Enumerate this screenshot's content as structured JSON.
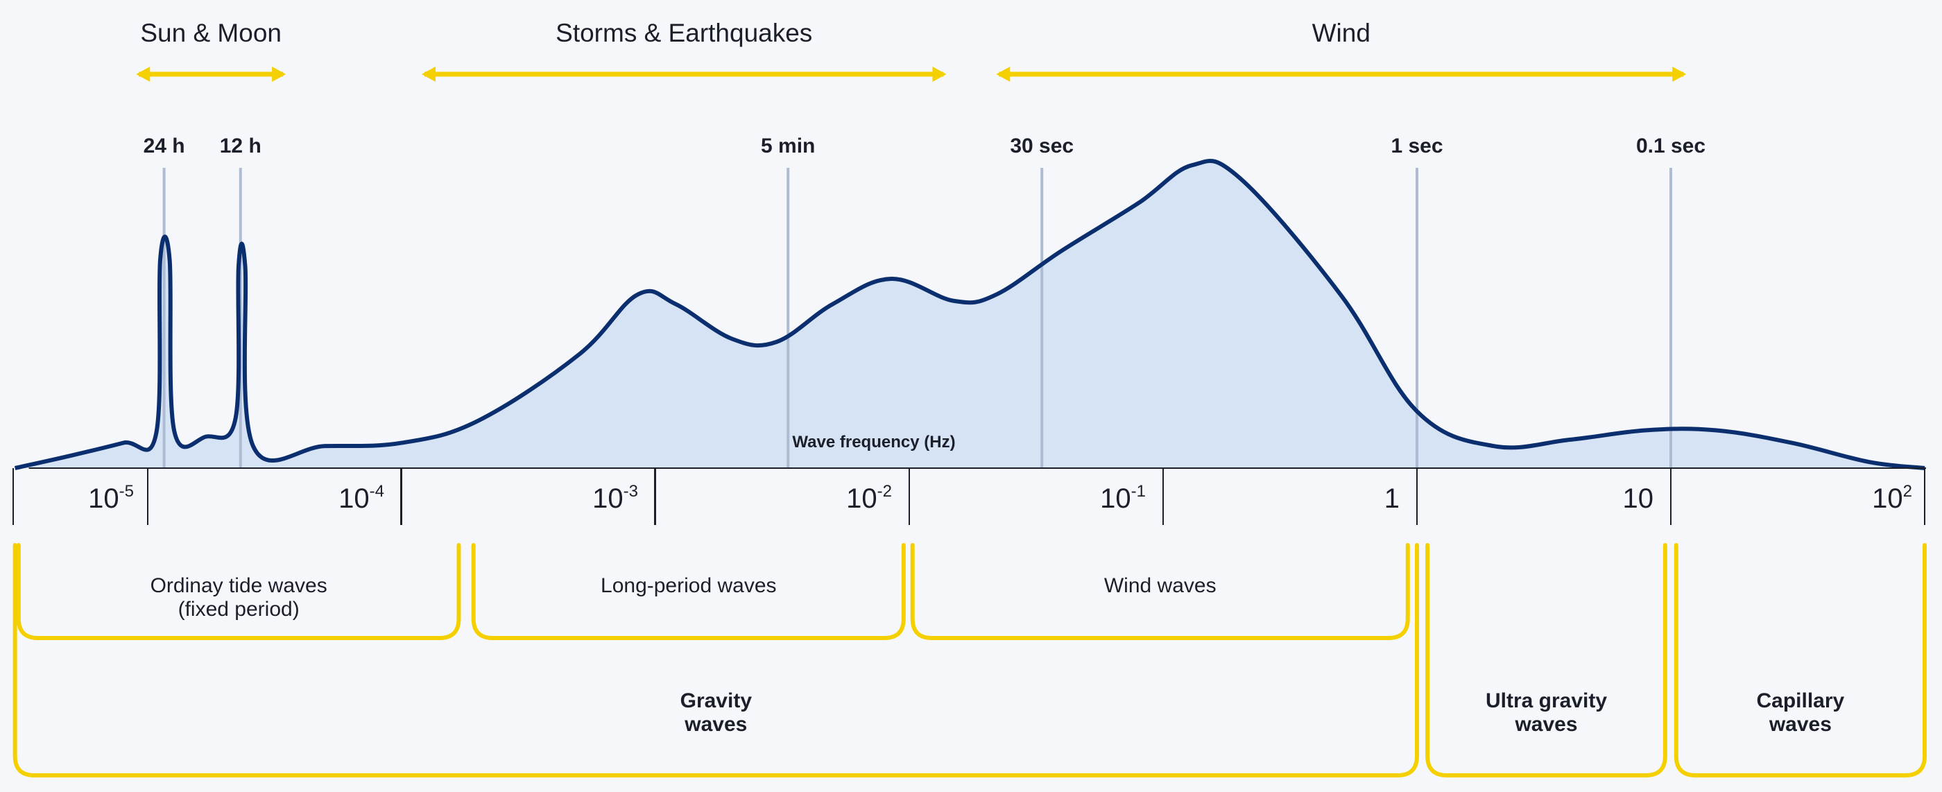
{
  "colors": {
    "accent_yellow": "#f5d000",
    "curve_stroke": "#0b2f6e",
    "curve_fill": "#d6e3f5",
    "marker_line": "#aebcd3",
    "axis": "#1b1f2a",
    "background": "#f5f7fb"
  },
  "causes": [
    {
      "label": "Sun & Moon",
      "from": 9e-06,
      "to": 3.5e-05
    },
    {
      "label": "Storms & Earthquakes",
      "from": 0.00012,
      "to": 0.014
    },
    {
      "label": "Wind",
      "from": 0.022,
      "to": 11.5
    }
  ],
  "period_markers": [
    {
      "label": "24 h",
      "freq": 1.16e-05
    },
    {
      "label": "12 h",
      "freq": 2.32e-05
    },
    {
      "label": "5 min",
      "freq": 0.00333
    },
    {
      "label": "30 sec",
      "freq": 0.0333
    },
    {
      "label": "1 sec",
      "freq": 1
    },
    {
      "label": "0.1 sec",
      "freq": 10
    }
  ],
  "axis": {
    "title": "Wave frequency (Hz)",
    "scale": "log",
    "range": [
      3e-06,
      100
    ],
    "ticks": [
      {
        "freq": 1e-05,
        "base": "10",
        "exp": "-5"
      },
      {
        "freq": 0.0001,
        "base": "10",
        "exp": "-4"
      },
      {
        "freq": 0.001,
        "base": "10",
        "exp": "-3"
      },
      {
        "freq": 0.01,
        "base": "10",
        "exp": "-2"
      },
      {
        "freq": 0.1,
        "base": "10",
        "exp": "-1"
      },
      {
        "freq": 1,
        "base": "1",
        "exp": ""
      },
      {
        "freq": 10,
        "base": "10",
        "exp": ""
      },
      {
        "freq": 100,
        "base": "10",
        "exp": "2"
      }
    ]
  },
  "spectrum": {
    "type": "area",
    "scale_note": "relative energy 0-1",
    "points": [
      [
        3e-06,
        0.0
      ],
      [
        5e-06,
        0.04
      ],
      [
        8e-06,
        0.08
      ],
      [
        1.08e-05,
        0.11
      ],
      [
        1.12e-05,
        0.66
      ],
      [
        1.22e-05,
        0.66
      ],
      [
        1.27e-05,
        0.12
      ],
      [
        1.7e-05,
        0.1
      ],
      [
        2.22e-05,
        0.16
      ],
      [
        2.28e-05,
        0.64
      ],
      [
        2.42e-05,
        0.64
      ],
      [
        2.6e-05,
        0.07
      ],
      [
        5e-05,
        0.07
      ],
      [
        0.0001,
        0.08
      ],
      [
        0.0002,
        0.15
      ],
      [
        0.0005,
        0.36
      ],
      [
        0.00085,
        0.55
      ],
      [
        0.0012,
        0.52
      ],
      [
        0.002,
        0.41
      ],
      [
        0.003,
        0.4
      ],
      [
        0.005,
        0.52
      ],
      [
        0.0085,
        0.6
      ],
      [
        0.015,
        0.53
      ],
      [
        0.022,
        0.55
      ],
      [
        0.04,
        0.69
      ],
      [
        0.08,
        0.84
      ],
      [
        0.13,
        0.96
      ],
      [
        0.2,
        0.92
      ],
      [
        0.5,
        0.55
      ],
      [
        1,
        0.18
      ],
      [
        2,
        0.07
      ],
      [
        4,
        0.09
      ],
      [
        8,
        0.12
      ],
      [
        15,
        0.12
      ],
      [
        30,
        0.08
      ],
      [
        60,
        0.02
      ],
      [
        100,
        0.0
      ]
    ]
  },
  "bands": [
    {
      "lines": [
        "Ordinay tide waves",
        "(fixed period)"
      ],
      "from": 3.1e-06,
      "to": 0.000168
    },
    {
      "lines": [
        "Long-period waves"
      ],
      "from": 0.000192,
      "to": 0.0095
    },
    {
      "lines": [
        "Wind waves"
      ],
      "from": 0.0103,
      "to": 0.92
    }
  ],
  "classes": [
    {
      "lines": [
        "Gravity",
        "waves"
      ],
      "from": 3e-06,
      "to": 1
    },
    {
      "lines": [
        "Ultra gravity",
        "waves"
      ],
      "from": 1.1,
      "to": 9.5
    },
    {
      "lines": [
        "Capillary",
        "waves"
      ],
      "from": 10.5,
      "to": 100
    }
  ]
}
